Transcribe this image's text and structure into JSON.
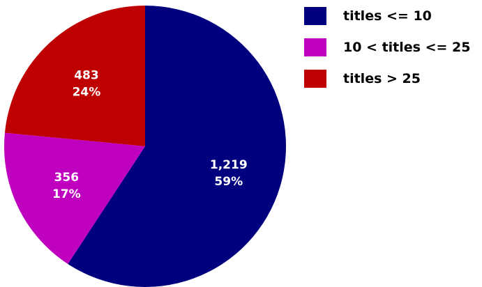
{
  "chart_data": {
    "type": "pie",
    "slices": [
      {
        "name": "titles <= 10",
        "value": 1219,
        "value_label": "1,219",
        "percent_label": "59%",
        "color": "#00007f"
      },
      {
        "name": "10 < titles <= 25",
        "value": 356,
        "value_label": "356",
        "percent_label": "17%",
        "color": "#bf00bf"
      },
      {
        "name": "titles > 25",
        "value": 483,
        "value_label": "483",
        "percent_label": "24%",
        "color": "#bf0000"
      }
    ],
    "legend": {
      "placement": "top-right",
      "entries": [
        "titles <= 10",
        "10 < titles <= 25",
        "titles > 25"
      ]
    }
  }
}
